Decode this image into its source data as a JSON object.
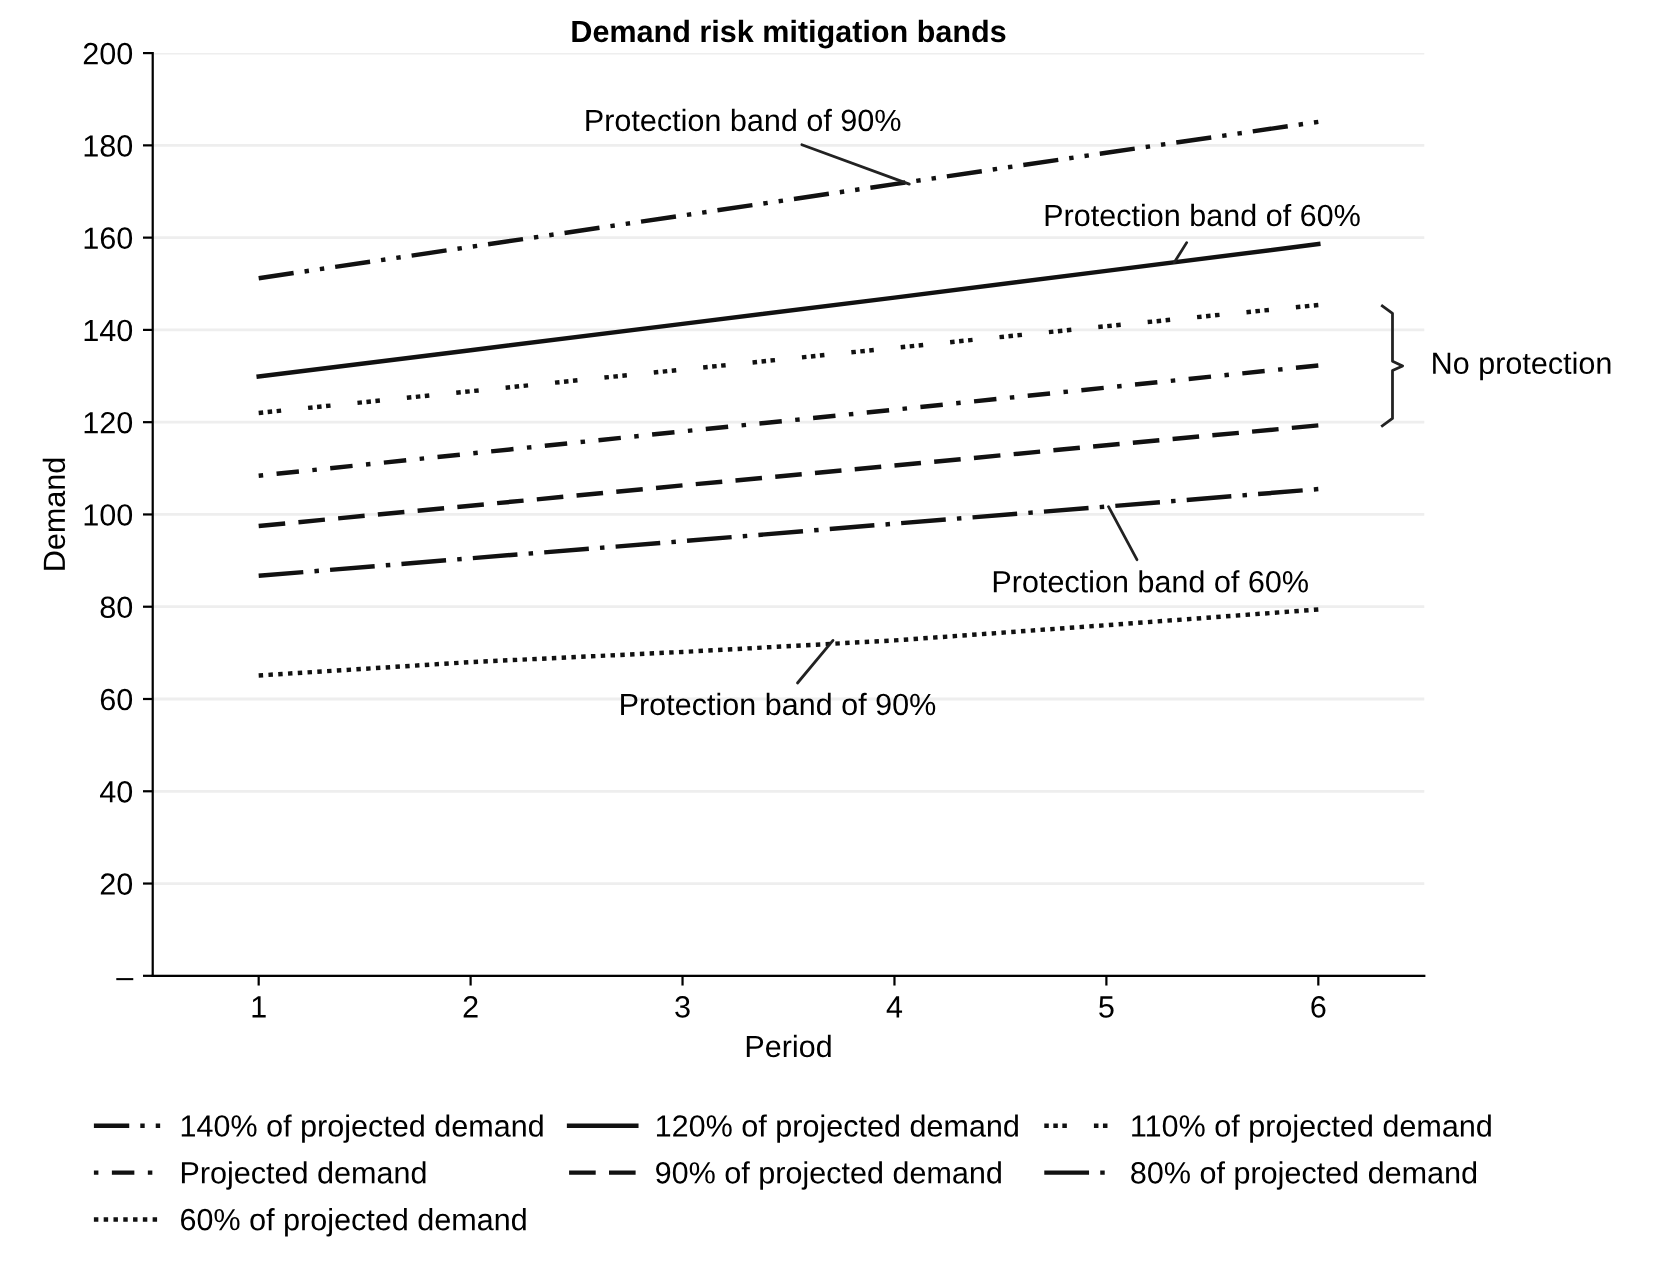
{
  "chart_data": {
    "type": "line",
    "title": "Demand risk mitigation bands",
    "xlabel": "Period",
    "ylabel": "Demand",
    "x": [
      1,
      2,
      3,
      4,
      5,
      6
    ],
    "series": [
      {
        "name": "140% of projected demand",
        "color": "#111111",
        "line_style": "dashdotdot",
        "values": [
          151.2,
          158,
          164.8,
          171.6,
          178.4,
          185.1
        ]
      },
      {
        "name": "120% of projected demand",
        "color": "#111111",
        "line_style": "solid",
        "values": [
          129.9,
          135.6,
          141.3,
          147.0,
          152.8,
          158.6
        ]
      },
      {
        "name": "110% of projected demand",
        "color": "#111111",
        "line_style": "dotgroup",
        "values": [
          122,
          126.7,
          131.4,
          136.1,
          140.8,
          145.4
        ]
      },
      {
        "name": "Projected demand",
        "color": "#111111",
        "line_style": "dashdot",
        "values": [
          108.4,
          113.2,
          118,
          122.7,
          127.5,
          132.3
        ]
      },
      {
        "name": "90% of projected demand",
        "color": "#111111",
        "line_style": "dashed",
        "values": [
          97.5,
          101.9,
          106.3,
          110.6,
          115,
          119.3
        ]
      },
      {
        "name": "80% of projected demand",
        "color": "#111111",
        "line_style": "longdashdot",
        "values": [
          86.7,
          90.5,
          94.2,
          98,
          101.7,
          105.5
        ]
      },
      {
        "name": "60% of projected demand",
        "color": "#111111",
        "line_style": "dotted",
        "values": [
          65.1,
          68,
          70.2,
          72.7,
          76,
          79.4
        ]
      }
    ],
    "xlim": [
      0.5,
      6.5
    ],
    "xticks": [
      1,
      2,
      3,
      4,
      5,
      6
    ],
    "ylim": [
      0,
      200
    ],
    "yticks": [
      {
        "value": 0,
        "label": "–"
      },
      20,
      40,
      60,
      80,
      100,
      120,
      140,
      160,
      180,
      200
    ],
    "grid": "y",
    "legend": "bottom",
    "annotations": [
      {
        "text": "Protection band of 90%",
        "x": 4.07,
        "y": 171.6
      },
      {
        "text": "Protection band of 60%",
        "x": 5.32,
        "y": 154.6
      },
      "No protection",
      {
        "text": "Protection band of 60%",
        "x": 5.01,
        "y": 101.7
      },
      {
        "text": "Protection band of 90%",
        "x": 3.71,
        "y": 72.7
      }
    ]
  }
}
